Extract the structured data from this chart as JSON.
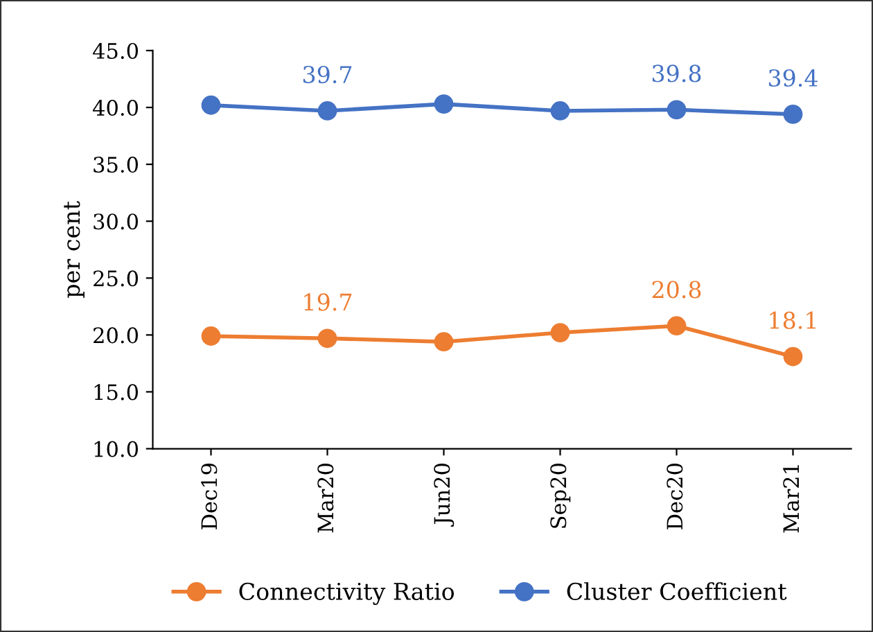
{
  "chart_data": {
    "type": "line",
    "ylabel": "per cent",
    "categories": [
      "Dec19",
      "Mar20",
      "Jun20",
      "Sep20",
      "Dec20",
      "Mar21"
    ],
    "series": [
      {
        "name": "Connectivity Ratio",
        "color": "#ed7d31",
        "values": [
          19.9,
          19.7,
          19.4,
          20.2,
          20.8,
          18.1
        ],
        "value_labels": [
          null,
          "19.7",
          null,
          null,
          "20.8",
          "18.1"
        ]
      },
      {
        "name": "Cluster Coefficient",
        "color": "#4472c4",
        "values": [
          40.2,
          39.7,
          40.3,
          39.7,
          39.8,
          39.4
        ],
        "value_labels": [
          null,
          "39.7",
          null,
          null,
          "39.8",
          "39.4"
        ]
      }
    ],
    "ylim": [
      10,
      45
    ],
    "yticks": [
      {
        "value": 10,
        "label": "10.0"
      },
      {
        "value": 15,
        "label": "15.0"
      },
      {
        "value": 20,
        "label": "20.0"
      },
      {
        "value": 25,
        "label": "25.0"
      },
      {
        "value": 30,
        "label": "30.0"
      },
      {
        "value": 35,
        "label": "35.0"
      },
      {
        "value": 40,
        "label": "40.0"
      },
      {
        "value": 45,
        "label": "45.0"
      }
    ],
    "grid": false,
    "legend": "bottom",
    "marker": "circle",
    "line_style": "solid"
  }
}
